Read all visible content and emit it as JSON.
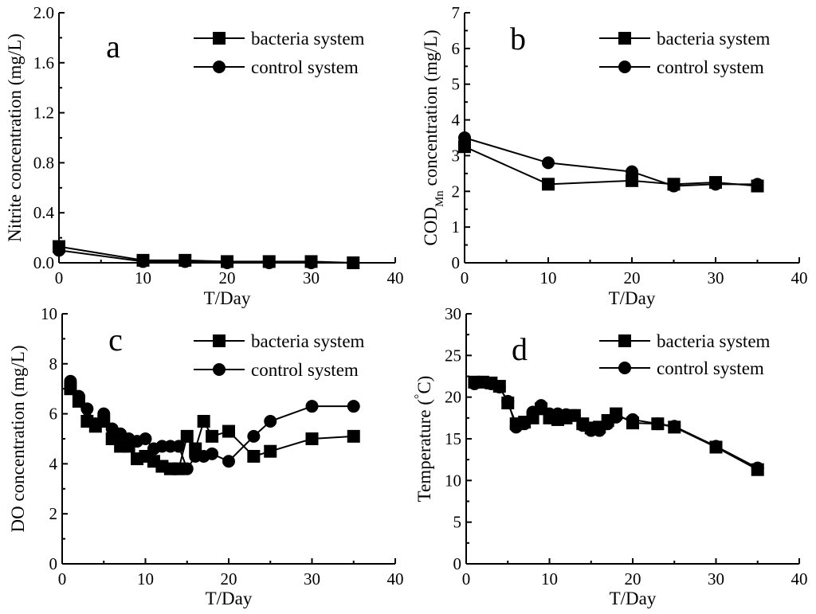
{
  "chart_data": [
    {
      "panel": "a",
      "type": "line",
      "xlabel": "T/Day",
      "ylabel": "Nitrite concentration (mg/L)",
      "xlim": [
        0,
        40
      ],
      "ylim": [
        0,
        2.0
      ],
      "xticks": [
        0,
        10,
        20,
        30,
        40
      ],
      "yticks": [
        0.0,
        0.4,
        0.8,
        1.2,
        1.6,
        2.0
      ],
      "ytick_labels": [
        "0.0",
        "0.4",
        "0.8",
        "1.2",
        "1.6",
        "2.0"
      ],
      "legend": "top-right",
      "series": [
        {
          "name": "bacteria system",
          "marker": "square",
          "x": [
            0,
            10,
            15,
            20,
            25,
            30,
            35
          ],
          "y": [
            0.13,
            0.02,
            0.02,
            0.01,
            0.01,
            0.01,
            0.0
          ]
        },
        {
          "name": "control system",
          "marker": "circle",
          "x": [
            0,
            10,
            15,
            20,
            25,
            30,
            35
          ],
          "y": [
            0.1,
            0.01,
            0.01,
            0.0,
            0.0,
            0.0,
            0.0
          ]
        }
      ]
    },
    {
      "panel": "b",
      "type": "line",
      "xlabel": "T/Day",
      "ylabel_main": "COD",
      "ylabel_sub": "Mn",
      "ylabel_rest": " concentration (mg/L)",
      "xlim": [
        0,
        40
      ],
      "ylim": [
        0,
        7
      ],
      "xticks": [
        0,
        10,
        20,
        30,
        40
      ],
      "yticks": [
        0,
        1,
        2,
        3,
        4,
        5,
        6,
        7
      ],
      "ytick_labels": [
        "0",
        "1",
        "2",
        "3",
        "4",
        "5",
        "6",
        "7"
      ],
      "legend": "top-right",
      "series": [
        {
          "name": "bacteria system",
          "marker": "square",
          "x": [
            0,
            10,
            20,
            25,
            30,
            35
          ],
          "y": [
            3.25,
            2.2,
            2.3,
            2.2,
            2.25,
            2.15
          ]
        },
        {
          "name": "control system",
          "marker": "circle",
          "x": [
            0,
            10,
            20,
            25,
            30,
            35
          ],
          "y": [
            3.5,
            2.8,
            2.55,
            2.15,
            2.2,
            2.2
          ]
        }
      ]
    },
    {
      "panel": "c",
      "type": "line",
      "xlabel": "T/Day",
      "ylabel": "DO concentration (mg/L)",
      "xlim": [
        0,
        40
      ],
      "ylim": [
        0,
        10
      ],
      "xticks": [
        0,
        10,
        20,
        30,
        40
      ],
      "yticks": [
        0,
        2,
        4,
        6,
        8,
        10
      ],
      "ytick_labels": [
        "0",
        "2",
        "4",
        "6",
        "8",
        "10"
      ],
      "legend": "top-right",
      "series": [
        {
          "name": "bacteria system",
          "marker": "square",
          "x": [
            1,
            2,
            3,
            4,
            5,
            6,
            7,
            8,
            9,
            10,
            11,
            12,
            13,
            14,
            15,
            16,
            17,
            18,
            20,
            23,
            25,
            30,
            35
          ],
          "y": [
            7.0,
            6.5,
            5.7,
            5.5,
            5.7,
            5.0,
            4.7,
            4.7,
            4.2,
            4.3,
            4.1,
            3.9,
            3.8,
            3.8,
            5.1,
            4.6,
            5.7,
            5.1,
            5.3,
            4.3,
            4.5,
            5.0,
            5.1
          ]
        },
        {
          "name": "control system",
          "marker": "circle",
          "x": [
            1,
            2,
            3,
            4,
            5,
            6,
            7,
            8,
            9,
            10,
            11,
            12,
            13,
            14,
            15,
            16,
            17,
            18,
            20,
            23,
            25,
            30,
            35
          ],
          "y": [
            7.3,
            6.7,
            6.2,
            5.6,
            6.0,
            5.4,
            5.2,
            5.0,
            4.9,
            5.0,
            4.6,
            4.7,
            4.7,
            4.7,
            3.8,
            4.3,
            4.3,
            4.4,
            4.1,
            5.1,
            5.7,
            6.3,
            6.3
          ]
        }
      ]
    },
    {
      "panel": "d",
      "type": "line",
      "xlabel": "T/Day",
      "ylabel_prefix": "Temperature (",
      "ylabel_degree": "°",
      "ylabel_suffix": "C)",
      "xlim": [
        0,
        40
      ],
      "ylim": [
        0,
        30
      ],
      "xticks": [
        0,
        10,
        20,
        30,
        40
      ],
      "yticks": [
        0,
        5,
        10,
        15,
        20,
        25,
        30
      ],
      "ytick_labels": [
        "0",
        "5",
        "10",
        "15",
        "20",
        "25",
        "30"
      ],
      "legend": "top-right",
      "series": [
        {
          "name": "bacteria system",
          "marker": "square",
          "x": [
            1,
            2,
            3,
            4,
            5,
            6,
            7,
            8,
            9,
            10,
            11,
            12,
            13,
            14,
            15,
            16,
            17,
            18,
            20,
            23,
            25,
            30,
            35
          ],
          "y": [
            21.8,
            21.8,
            21.7,
            21.3,
            19.3,
            16.8,
            17.0,
            17.5,
            18.6,
            17.5,
            17.3,
            17.5,
            17.8,
            16.8,
            16.3,
            16.4,
            17.2,
            18.0,
            16.9,
            16.8,
            16.4,
            14.0,
            11.3
          ]
        },
        {
          "name": "control system",
          "marker": "circle",
          "x": [
            1,
            2,
            3,
            4,
            5,
            6,
            7,
            8,
            9,
            10,
            11,
            12,
            13,
            14,
            15,
            16,
            17,
            18,
            20,
            23,
            25,
            30,
            35
          ],
          "y": [
            21.6,
            21.8,
            21.6,
            21.2,
            19.5,
            16.4,
            16.8,
            18.2,
            19.0,
            18.0,
            18.0,
            17.9,
            17.8,
            16.6,
            16.0,
            16.0,
            16.8,
            17.6,
            17.3,
            16.8,
            16.5,
            14.1,
            11.5
          ]
        }
      ]
    }
  ]
}
